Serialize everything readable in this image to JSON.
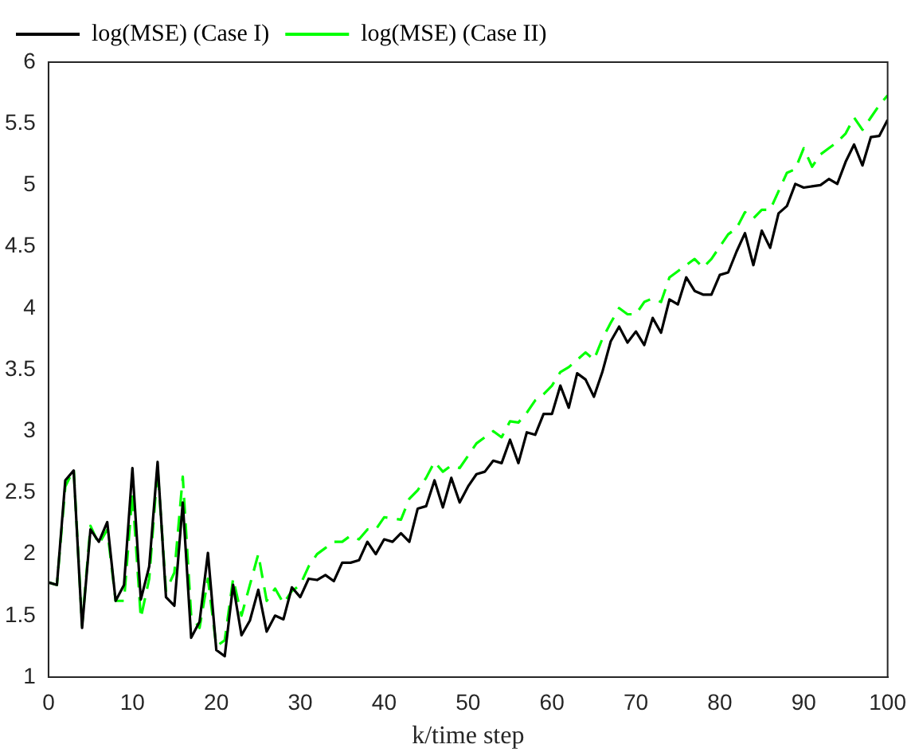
{
  "chart_data": {
    "type": "line",
    "xlabel": "k/time step",
    "x": [
      0,
      1,
      2,
      3,
      4,
      5,
      6,
      7,
      8,
      9,
      10,
      11,
      12,
      13,
      14,
      15,
      16,
      17,
      18,
      19,
      20,
      21,
      22,
      23,
      24,
      25,
      26,
      27,
      28,
      29,
      30,
      31,
      32,
      33,
      34,
      35,
      36,
      37,
      38,
      39,
      40,
      41,
      42,
      43,
      44,
      45,
      46,
      47,
      48,
      49,
      50,
      51,
      52,
      53,
      54,
      55,
      56,
      57,
      58,
      59,
      60,
      61,
      62,
      63,
      64,
      65,
      66,
      67,
      68,
      69,
      70,
      71,
      72,
      73,
      74,
      75,
      76,
      77,
      78,
      79,
      80,
      81,
      82,
      83,
      84,
      85,
      86,
      87,
      88,
      89,
      90,
      91,
      92,
      93,
      94,
      95,
      96,
      97,
      98,
      99,
      100
    ],
    "series": [
      {
        "name": "log(MSE) (Case I)",
        "color": "#000000",
        "line_style": "solid",
        "values": [
          1.77,
          1.75,
          2.6,
          2.68,
          1.4,
          2.2,
          2.1,
          2.26,
          1.62,
          1.75,
          2.7,
          1.63,
          1.9,
          2.75,
          1.65,
          1.58,
          2.42,
          1.32,
          1.45,
          2.01,
          1.22,
          1.17,
          1.75,
          1.34,
          1.46,
          1.71,
          1.37,
          1.5,
          1.47,
          1.73,
          1.65,
          1.8,
          1.79,
          1.83,
          1.78,
          1.93,
          1.93,
          1.95,
          2.1,
          2.0,
          2.12,
          2.1,
          2.17,
          2.1,
          2.37,
          2.39,
          2.6,
          2.38,
          2.62,
          2.42,
          2.55,
          2.65,
          2.67,
          2.76,
          2.74,
          2.93,
          2.74,
          2.99,
          2.97,
          3.14,
          3.14,
          3.37,
          3.19,
          3.47,
          3.42,
          3.28,
          3.48,
          3.73,
          3.85,
          3.72,
          3.81,
          3.7,
          3.92,
          3.8,
          4.07,
          4.03,
          4.25,
          4.14,
          4.11,
          4.11,
          4.27,
          4.29,
          4.46,
          4.61,
          4.35,
          4.63,
          4.49,
          4.77,
          4.83,
          5.01,
          4.98,
          4.99,
          5.0,
          5.05,
          5.01,
          5.19,
          5.33,
          5.16,
          5.39,
          5.4,
          5.53
        ]
      },
      {
        "name": "log(MSE) (Case II)",
        "color": "#00ff00",
        "line_style": "dashed",
        "values": [
          1.77,
          1.75,
          2.55,
          2.69,
          1.42,
          2.23,
          2.08,
          2.2,
          1.62,
          1.62,
          2.5,
          1.48,
          1.8,
          2.7,
          1.7,
          1.85,
          2.63,
          1.5,
          1.4,
          1.8,
          1.25,
          1.3,
          1.8,
          1.5,
          1.75,
          2.0,
          1.62,
          1.72,
          1.6,
          1.7,
          1.75,
          1.9,
          2.0,
          2.05,
          2.1,
          2.1,
          2.15,
          2.12,
          2.2,
          2.2,
          2.3,
          2.29,
          2.28,
          2.45,
          2.52,
          2.62,
          2.75,
          2.67,
          2.72,
          2.7,
          2.8,
          2.9,
          2.95,
          3.0,
          2.95,
          3.08,
          3.07,
          3.15,
          3.25,
          3.3,
          3.37,
          3.48,
          3.52,
          3.58,
          3.64,
          3.58,
          3.75,
          3.88,
          4.0,
          3.95,
          3.95,
          4.05,
          4.08,
          4.05,
          4.25,
          4.3,
          4.35,
          4.4,
          4.33,
          4.4,
          4.5,
          4.6,
          4.65,
          4.78,
          4.73,
          4.8,
          4.8,
          4.95,
          5.1,
          5.13,
          5.3,
          5.15,
          5.25,
          5.3,
          5.35,
          5.42,
          5.55,
          5.45,
          5.55,
          5.65,
          5.73
        ]
      }
    ],
    "xlim": [
      0,
      100
    ],
    "xticks": [
      0,
      10,
      20,
      30,
      40,
      50,
      60,
      70,
      80,
      90,
      100
    ],
    "ylim": [
      1,
      6
    ],
    "yticks": [
      1,
      1.5,
      2,
      2.5,
      3,
      3.5,
      4,
      4.5,
      5,
      5.5,
      6
    ],
    "grid": false,
    "legend": "top left",
    "marker": "none"
  }
}
